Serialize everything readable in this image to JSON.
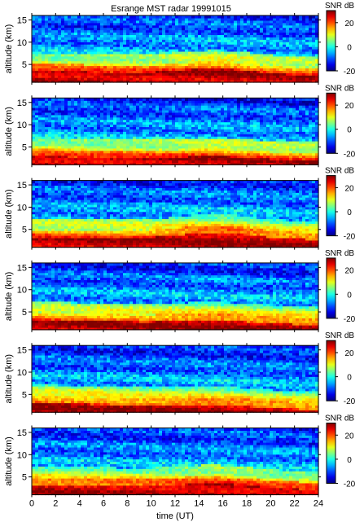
{
  "chart_data": {
    "type": "heatmap",
    "title": "Esrange MST radar 19991015",
    "xlabel": "time (UT)",
    "ylabel": "altitude (km)",
    "xlim": [
      0,
      24
    ],
    "x_ticks": [
      0,
      2,
      4,
      6,
      8,
      10,
      12,
      14,
      16,
      18,
      20,
      22,
      24
    ],
    "ylim": [
      1,
      16
    ],
    "y_ticks": [
      5,
      10,
      15
    ],
    "colorbar": {
      "label": "SNR dB",
      "range": [
        -20,
        30
      ],
      "ticks": [
        -20,
        0,
        20
      ],
      "colormap": "jet"
    },
    "panels": [
      {
        "id": 1,
        "boundary_start_km": 5.2,
        "boundary_end_km": 4.2,
        "mid_bump_km": 1.2
      },
      {
        "id": 2,
        "boundary_start_km": 4.6,
        "boundary_end_km": 3.6,
        "mid_bump_km": 0.6
      },
      {
        "id": 3,
        "boundary_start_km": 5.0,
        "boundary_end_km": 4.4,
        "mid_bump_km": 1.4
      },
      {
        "id": 4,
        "boundary_start_km": 4.8,
        "boundary_end_km": 3.8,
        "mid_bump_km": 0.6
      },
      {
        "id": 5,
        "boundary_start_km": 4.8,
        "boundary_end_km": 3.2,
        "mid_bump_km": 0.6
      },
      {
        "id": 6,
        "boundary_start_km": 5.0,
        "boundary_end_km": 3.8,
        "mid_bump_km": 1.0
      }
    ]
  }
}
